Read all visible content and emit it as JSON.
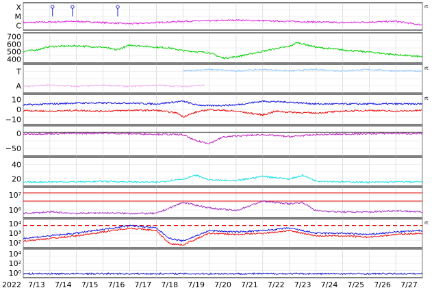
{
  "chart_data": {
    "type": "line",
    "year_label": "2022",
    "x_tick_labels": [
      "7/13",
      "7/14",
      "7/15",
      "7/16",
      "7/17",
      "7/18",
      "7/19",
      "7/20",
      "7/21",
      "7/22",
      "7/23",
      "7/24",
      "7/25",
      "7/26",
      "7/27"
    ],
    "right_marker": "rt",
    "grid": true,
    "panels": [
      {
        "id": "flare",
        "ylabels": [
          "X",
          "M",
          "C"
        ],
        "series": [
          {
            "color": "#e020e0",
            "profile": [
              [
                0,
                0.25
              ],
              [
                2,
                0.3
              ],
              [
                4,
                0.2
              ],
              [
                6,
                0.3
              ],
              [
                8,
                0.35
              ],
              [
                10,
                0.3
              ],
              [
                12,
                0.25
              ],
              [
                14,
                0.3
              ],
              [
                15,
                0.15
              ]
            ]
          }
        ],
        "markers": [
          [
            1.1,
            "#2020c0"
          ],
          [
            1.85,
            "#2020c0"
          ],
          [
            3.55,
            "#2020c0"
          ]
        ],
        "right_marker": true
      },
      {
        "id": "speed",
        "ylabels": [
          "700",
          "600",
          "500",
          "400"
        ],
        "ylim": [
          350,
          750
        ],
        "series": [
          {
            "color": "#00d000",
            "profile": [
              [
                0,
                500
              ],
              [
                0.5,
                520
              ],
              [
                1,
                570
              ],
              [
                2,
                580
              ],
              [
                3,
                560
              ],
              [
                3.5,
                520
              ],
              [
                4,
                590
              ],
              [
                5,
                560
              ],
              [
                5.5,
                550
              ],
              [
                6,
                510
              ],
              [
                7,
                480
              ],
              [
                7.5,
                400
              ],
              [
                8,
                420
              ],
              [
                8.5,
                460
              ],
              [
                9,
                500
              ],
              [
                9.5,
                540
              ],
              [
                10,
                570
              ],
              [
                10.3,
                630
              ],
              [
                11,
                560
              ],
              [
                12,
                520
              ],
              [
                13,
                490
              ],
              [
                14,
                450
              ],
              [
                15,
                420
              ]
            ]
          }
        ]
      },
      {
        "id": "bz-flag",
        "ylabels": [
          "T",
          "A"
        ],
        "series": [
          {
            "color": "#90c8ff",
            "profile": [
              [
                6,
                0.8
              ],
              [
                7,
                0.85
              ],
              [
                8,
                0.8
              ],
              [
                9,
                0.85
              ],
              [
                10,
                0.8
              ],
              [
                11,
                0.85
              ],
              [
                12,
                0.8
              ],
              [
                13,
                0.85
              ],
              [
                14,
                0.8
              ],
              [
                15,
                0.8
              ]
            ]
          },
          {
            "color": "#f0b0f0",
            "profile": [
              [
                0,
                0.2
              ],
              [
                1,
                0.25
              ],
              [
                2,
                0.2
              ],
              [
                3,
                0.25
              ],
              [
                4,
                0.2
              ],
              [
                5,
                0.25
              ],
              [
                6,
                0.2
              ],
              [
                6.8,
                0.25
              ]
            ]
          }
        ],
        "right_marker": true
      },
      {
        "id": "bz",
        "ylabels": [
          "10",
          "0",
          "−10"
        ],
        "ylim": [
          -15,
          15
        ],
        "series": [
          {
            "color": "#1010e0",
            "profile": [
              [
                0,
                5
              ],
              [
                1,
                6
              ],
              [
                2,
                7
              ],
              [
                4,
                7
              ],
              [
                5,
                6
              ],
              [
                6,
                9
              ],
              [
                6.5,
                5
              ],
              [
                7,
                4
              ],
              [
                8,
                5
              ],
              [
                9,
                9
              ],
              [
                10,
                8
              ],
              [
                11,
                6
              ],
              [
                12,
                6
              ],
              [
                13,
                6
              ],
              [
                14,
                6
              ],
              [
                15,
                6
              ]
            ]
          },
          {
            "color": "#f01010",
            "profile": [
              [
                0,
                -1
              ],
              [
                1,
                -2
              ],
              [
                2,
                -1
              ],
              [
                3,
                -2
              ],
              [
                4,
                -1
              ],
              [
                5,
                -1
              ],
              [
                5.8,
                -4
              ],
              [
                6,
                -8
              ],
              [
                6.5,
                -3
              ],
              [
                7,
                0
              ],
              [
                8,
                -2
              ],
              [
                9,
                -6
              ],
              [
                9.5,
                -2
              ],
              [
                10,
                -3
              ],
              [
                11,
                -4
              ],
              [
                12,
                -2
              ],
              [
                13,
                -1
              ],
              [
                14,
                -2
              ],
              [
                15,
                -1
              ]
            ]
          }
        ],
        "right_marker": true
      },
      {
        "id": "dst",
        "ylabels": [
          "0",
          "−50"
        ],
        "ylim": [
          -90,
          20
        ],
        "series": [
          {
            "color": "#c020c0",
            "profile": [
              [
                0,
                -8
              ],
              [
                1,
                -6
              ],
              [
                2,
                -5
              ],
              [
                3,
                -4
              ],
              [
                4,
                -6
              ],
              [
                5,
                -8
              ],
              [
                6,
                -10
              ],
              [
                6.5,
                -35
              ],
              [
                7,
                -45
              ],
              [
                7.5,
                -20
              ],
              [
                8,
                -15
              ],
              [
                9,
                -10
              ],
              [
                10,
                -18
              ],
              [
                11,
                -10
              ],
              [
                12,
                -8
              ],
              [
                13,
                -6
              ],
              [
                14,
                -5
              ],
              [
                15,
                -6
              ]
            ]
          }
        ],
        "baseline": 0
      },
      {
        "id": "kp",
        "ylabels": [
          "40",
          "20"
        ],
        "ylim": [
          0,
          55
        ],
        "series": [
          {
            "color": "#20e0e0",
            "profile": [
              [
                0,
                5
              ],
              [
                1,
                6
              ],
              [
                2,
                6
              ],
              [
                3,
                7
              ],
              [
                4,
                6
              ],
              [
                5,
                5
              ],
              [
                6,
                12
              ],
              [
                6.5,
                20
              ],
              [
                7,
                10
              ],
              [
                8,
                8
              ],
              [
                9,
                18
              ],
              [
                10,
                12
              ],
              [
                10.5,
                20
              ],
              [
                11,
                8
              ],
              [
                12,
                6
              ],
              [
                13,
                5
              ],
              [
                14,
                6
              ],
              [
                15,
                6
              ]
            ]
          }
        ]
      },
      {
        "id": "proton",
        "ylabels": [
          "10⁷",
          "10⁶"
        ],
        "ylim": [
          0,
          1
        ],
        "series": [
          {
            "color": "#a030c0",
            "profile": [
              [
                0,
                0.1
              ],
              [
                1,
                0.15
              ],
              [
                2,
                0.1
              ],
              [
                3,
                0.12
              ],
              [
                4,
                0.1
              ],
              [
                5,
                0.1
              ],
              [
                6,
                0.5
              ],
              [
                7,
                0.3
              ],
              [
                8,
                0.2
              ],
              [
                9,
                0.55
              ],
              [
                10,
                0.45
              ],
              [
                10.5,
                0.5
              ],
              [
                11,
                0.2
              ],
              [
                12,
                0.15
              ],
              [
                13,
                0.15
              ],
              [
                14,
                0.2
              ],
              [
                15,
                0.15
              ]
            ]
          }
        ],
        "hlines": [
          0.85,
          0.55
        ]
      },
      {
        "id": "electron",
        "ylabels": [
          "10⁴",
          "10³",
          "10²"
        ],
        "ylim": [
          0,
          1
        ],
        "series": [
          {
            "color": "#1010e0",
            "profile": [
              [
                0,
                0.3
              ],
              [
                1,
                0.4
              ],
              [
                2,
                0.5
              ],
              [
                3,
                0.65
              ],
              [
                4,
                0.8
              ],
              [
                5,
                0.7
              ],
              [
                5.5,
                0.3
              ],
              [
                6,
                0.2
              ],
              [
                7,
                0.6
              ],
              [
                8,
                0.55
              ],
              [
                9,
                0.6
              ],
              [
                10,
                0.7
              ],
              [
                11,
                0.5
              ],
              [
                12,
                0.5
              ],
              [
                13,
                0.45
              ],
              [
                14,
                0.55
              ],
              [
                15,
                0.6
              ]
            ]
          },
          {
            "color": "#f01010",
            "profile": [
              [
                0,
                0.2
              ],
              [
                1,
                0.3
              ],
              [
                2,
                0.4
              ],
              [
                3,
                0.55
              ],
              [
                4,
                0.7
              ],
              [
                5,
                0.6
              ],
              [
                5.5,
                0.1
              ],
              [
                6,
                0.05
              ],
              [
                7,
                0.5
              ],
              [
                8,
                0.45
              ],
              [
                9,
                0.5
              ],
              [
                10,
                0.6
              ],
              [
                11,
                0.4
              ],
              [
                12,
                0.4
              ],
              [
                13,
                0.35
              ],
              [
                14,
                0.45
              ],
              [
                15,
                0.5
              ]
            ]
          }
        ],
        "dashed_line": 0.8,
        "right_marker": true
      },
      {
        "id": "xray",
        "ylabels": [
          "10⁴",
          "10²",
          "10⁰"
        ],
        "ylim": [
          0,
          1
        ],
        "series": [
          {
            "color": "#1010c0",
            "profile": [
              [
                0,
                0.1
              ],
              [
                15,
                0.1
              ]
            ]
          }
        ]
      }
    ]
  }
}
